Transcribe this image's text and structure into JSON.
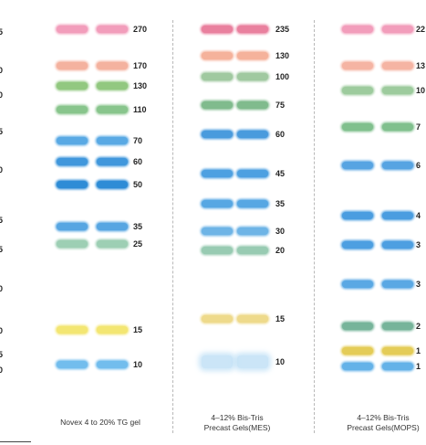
{
  "left_edge_labels": [
    "5",
    "0",
    "0",
    "5",
    "0",
    "5",
    "5",
    "0",
    "0",
    "5",
    "0"
  ],
  "panels": [
    {
      "caption": "Novex 4 to 20% TG gel",
      "markers": [
        {
          "label": "270",
          "color": "#f08db0"
        },
        {
          "label": "170",
          "color": "#f3a58f"
        },
        {
          "label": "130",
          "color": "#7fbf6a"
        },
        {
          "label": "110",
          "color": "#74bb78"
        },
        {
          "label": "70",
          "color": "#3d9be0"
        },
        {
          "label": "60",
          "color": "#1f86d6"
        },
        {
          "label": "50",
          "color": "#0a78cf"
        },
        {
          "label": "35",
          "color": "#3a97dd"
        },
        {
          "label": "25",
          "color": "#8dc7a8"
        },
        {
          "label": "15",
          "color": "#f2e25a"
        },
        {
          "label": "10",
          "color": "#5ab2ea"
        }
      ]
    },
    {
      "caption": "4–12% Bis-Tris\nPrecast Gels(MES)",
      "markers": [
        {
          "label": "235",
          "color": "#e66a8e"
        },
        {
          "label": "130",
          "color": "#f4a58a"
        },
        {
          "label": "100",
          "color": "#90c090"
        },
        {
          "label": "75",
          "color": "#6ab07a"
        },
        {
          "label": "60",
          "color": "#2a8ad8"
        },
        {
          "label": "45",
          "color": "#2f90dc"
        },
        {
          "label": "35",
          "color": "#3a98df"
        },
        {
          "label": "30",
          "color": "#55a7e2"
        },
        {
          "label": "20",
          "color": "#87c2a5"
        },
        {
          "label": "15",
          "color": "#ecd477"
        },
        {
          "label": "10",
          "color": "#a9d5f2"
        }
      ]
    },
    {
      "caption": "4–12% Bis-Tris\nPrecast Gels(MOPS)",
      "markers": [
        {
          "label": "22",
          "color": "#f08db0"
        },
        {
          "label": "13",
          "color": "#f4a894"
        },
        {
          "label": "10",
          "color": "#8cc28c"
        },
        {
          "label": "7",
          "color": "#6ab67a"
        },
        {
          "label": "6",
          "color": "#3a95de"
        },
        {
          "label": "4",
          "color": "#2b8ddb"
        },
        {
          "label": "3",
          "color": "#2e8fdc"
        },
        {
          "label": "3",
          "color": "#3e9ae0"
        },
        {
          "label": "2",
          "color": "#5fa889"
        },
        {
          "label": "1",
          "color": "#e0c43a"
        },
        {
          "label": "1",
          "color": "#4aa5e4"
        }
      ]
    }
  ]
}
